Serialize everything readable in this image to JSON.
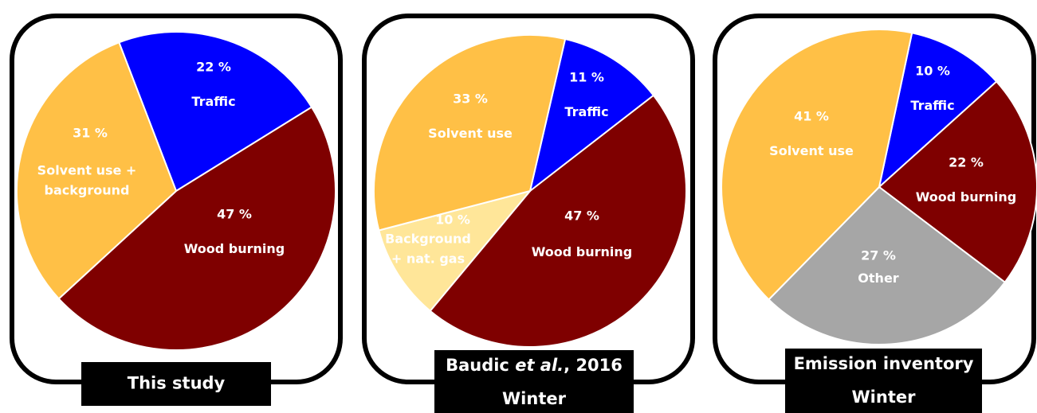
{
  "chart_data": [
    {
      "type": "pie",
      "title": [
        {
          "text": "This study"
        }
      ],
      "categories": [
        "Traffic",
        "Wood burning",
        "Solvent use +\nbackground"
      ],
      "values": [
        22,
        47,
        31
      ],
      "value_labels": [
        "22 %",
        "47 %",
        "31 %"
      ],
      "colors": [
        "#0000ff",
        "#7f0000",
        "#ffc046"
      ]
    },
    {
      "type": "pie",
      "title": [
        {
          "text": "Baudic "
        },
        {
          "text": "et al.",
          "italic": true
        },
        {
          "text": ", 2016"
        }
      ],
      "subtitle": "Winter",
      "categories": [
        "Traffic",
        "Wood burning",
        "Background\n+ nat. gas",
        "Solvent use"
      ],
      "values": [
        11,
        47,
        10,
        33
      ],
      "value_labels": [
        "11 %",
        "47 %",
        "10 %",
        "33 %"
      ],
      "colors": [
        "#0000ff",
        "#7f0000",
        "#ffe699",
        "#ffc046"
      ]
    },
    {
      "type": "pie",
      "title": [
        {
          "text": "Emission inventory"
        }
      ],
      "subtitle": "Winter",
      "categories": [
        "Traffic",
        "Wood burning",
        "Other",
        "Solvent use"
      ],
      "values": [
        10,
        22,
        27,
        41
      ],
      "value_labels": [
        "10 %",
        "22 %",
        "27 %",
        "41 %"
      ],
      "colors": [
        "#0000ff",
        "#7f0000",
        "#a6a6a6",
        "#ffc046"
      ]
    }
  ]
}
